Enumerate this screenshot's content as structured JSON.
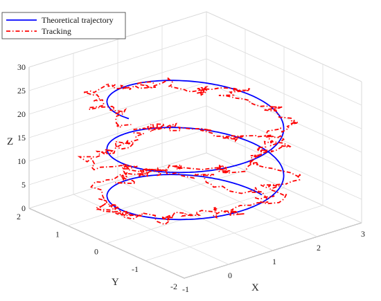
{
  "chart_data": {
    "type": "line3d",
    "title": "",
    "xlabel": "X",
    "ylabel": "Y",
    "zlabel": "Z",
    "xlim": [
      -1,
      3
    ],
    "ylim": [
      -2,
      2
    ],
    "zlim": [
      0,
      30
    ],
    "xticks": [
      "-1",
      "0",
      "1",
      "2",
      "3"
    ],
    "yticks": [
      "-2",
      "-1",
      "0",
      "1",
      "2"
    ],
    "zticks": [
      "0",
      "5",
      "10",
      "15",
      "20",
      "25",
      "30"
    ],
    "grid": true,
    "legend_position": "top-left",
    "legend": [
      {
        "label": "Theoretical trajectory",
        "color": "#0000ff",
        "style": "solid"
      },
      {
        "label": "Tracking",
        "color": "#ff0000",
        "style": "dashdot"
      }
    ],
    "series": [
      {
        "name": "Theoretical trajectory",
        "color": "#0000ff",
        "style": "solid",
        "helix": {
          "x_center": 1,
          "y_center": 0,
          "radius": 1.5,
          "turns": 2.5,
          "z_start": 0,
          "z_end": 25,
          "phase_start_deg": 0
        }
      },
      {
        "name": "Tracking",
        "color": "#ff0000",
        "style": "dashdot",
        "helix": {
          "x_center": 1,
          "y_center": 0,
          "radius": 1.5,
          "turns": 2.5,
          "z_start": 0,
          "z_end": 25,
          "phase_start_deg": 0
        },
        "noise": 0.12
      }
    ]
  }
}
